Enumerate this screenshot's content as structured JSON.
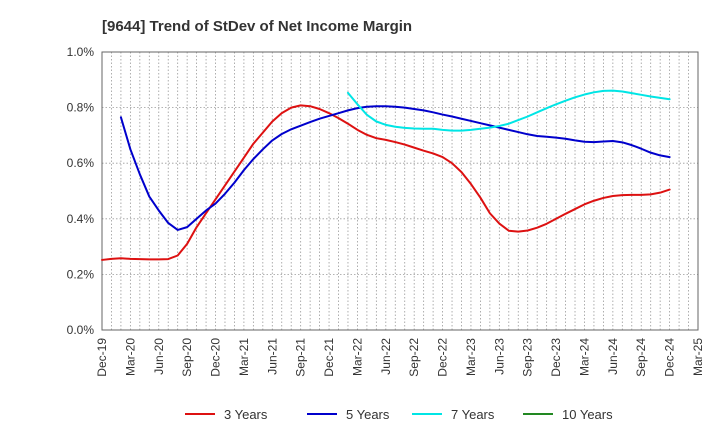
{
  "chart_data": {
    "type": "line",
    "title": "[9644]  Trend of StDev of Net Income Margin",
    "xlabel": "",
    "ylabel": "",
    "ylim": [
      0,
      1.0
    ],
    "y_ticks": [
      "0.0%",
      "0.2%",
      "0.4%",
      "0.6%",
      "0.8%",
      "1.0%"
    ],
    "y_tick_values": [
      0,
      0.2,
      0.4,
      0.6,
      0.8,
      1.0
    ],
    "x_ticks": [
      "Dec-19",
      "Mar-20",
      "Jun-20",
      "Sep-20",
      "Dec-20",
      "Mar-21",
      "Jun-21",
      "Sep-21",
      "Dec-21",
      "Mar-22",
      "Jun-22",
      "Sep-22",
      "Dec-22",
      "Mar-23",
      "Jun-23",
      "Sep-23",
      "Dec-23",
      "Mar-24",
      "Jun-24",
      "Sep-24",
      "Dec-24",
      "Mar-25"
    ],
    "grid": true,
    "legend_position": "bottom",
    "series": [
      {
        "name": "3 Years",
        "color": "#dd1111",
        "points": [
          [
            "Dec-19",
            0.252
          ],
          [
            "Jan-20",
            0.256
          ],
          [
            "Feb-20",
            0.258
          ],
          [
            "Mar-20",
            0.256
          ],
          [
            "Apr-20",
            0.255
          ],
          [
            "May-20",
            0.254
          ],
          [
            "Jun-20",
            0.254
          ],
          [
            "Jul-20",
            0.255
          ],
          [
            "Aug-20",
            0.268
          ],
          [
            "Sep-20",
            0.31
          ],
          [
            "Oct-20",
            0.37
          ],
          [
            "Nov-20",
            0.42
          ],
          [
            "Dec-20",
            0.47
          ],
          [
            "Jan-21",
            0.52
          ],
          [
            "Feb-21",
            0.57
          ],
          [
            "Mar-21",
            0.62
          ],
          [
            "Apr-21",
            0.67
          ],
          [
            "May-21",
            0.71
          ],
          [
            "Jun-21",
            0.75
          ],
          [
            "Jul-21",
            0.78
          ],
          [
            "Aug-21",
            0.8
          ],
          [
            "Sep-21",
            0.808
          ],
          [
            "Oct-21",
            0.805
          ],
          [
            "Nov-21",
            0.795
          ],
          [
            "Dec-21",
            0.78
          ],
          [
            "Jan-22",
            0.762
          ],
          [
            "Feb-22",
            0.742
          ],
          [
            "Mar-22",
            0.72
          ],
          [
            "Apr-22",
            0.702
          ],
          [
            "May-22",
            0.69
          ],
          [
            "Jun-22",
            0.684
          ],
          [
            "Jul-22",
            0.676
          ],
          [
            "Aug-22",
            0.667
          ],
          [
            "Sep-22",
            0.656
          ],
          [
            "Oct-22",
            0.645
          ],
          [
            "Nov-22",
            0.635
          ],
          [
            "Dec-22",
            0.622
          ],
          [
            "Jan-23",
            0.6
          ],
          [
            "Feb-23",
            0.568
          ],
          [
            "Mar-23",
            0.525
          ],
          [
            "Apr-23",
            0.476
          ],
          [
            "May-23",
            0.42
          ],
          [
            "Jun-23",
            0.383
          ],
          [
            "Jul-23",
            0.357
          ],
          [
            "Aug-23",
            0.354
          ],
          [
            "Sep-23",
            0.358
          ],
          [
            "Oct-23",
            0.368
          ],
          [
            "Nov-23",
            0.382
          ],
          [
            "Dec-23",
            0.4
          ],
          [
            "Jan-24",
            0.418
          ],
          [
            "Feb-24",
            0.435
          ],
          [
            "Mar-24",
            0.452
          ],
          [
            "Apr-24",
            0.465
          ],
          [
            "May-24",
            0.475
          ],
          [
            "Jun-24",
            0.482
          ],
          [
            "Jul-24",
            0.485
          ],
          [
            "Aug-24",
            0.486
          ],
          [
            "Sep-24",
            0.486
          ],
          [
            "Oct-24",
            0.488
          ],
          [
            "Nov-24",
            0.494
          ],
          [
            "Dec-24",
            0.505
          ]
        ]
      },
      {
        "name": "5 Years",
        "color": "#0000cc",
        "points": [
          [
            "Feb-20",
            0.765
          ],
          [
            "Mar-20",
            0.65
          ],
          [
            "Apr-20",
            0.56
          ],
          [
            "May-20",
            0.48
          ],
          [
            "Jun-20",
            0.43
          ],
          [
            "Jul-20",
            0.385
          ],
          [
            "Aug-20",
            0.36
          ],
          [
            "Sep-20",
            0.37
          ],
          [
            "Oct-20",
            0.4
          ],
          [
            "Nov-20",
            0.43
          ],
          [
            "Dec-20",
            0.455
          ],
          [
            "Jan-21",
            0.49
          ],
          [
            "Feb-21",
            0.53
          ],
          [
            "Mar-21",
            0.575
          ],
          [
            "Apr-21",
            0.615
          ],
          [
            "May-21",
            0.65
          ],
          [
            "Jun-21",
            0.682
          ],
          [
            "Jul-21",
            0.705
          ],
          [
            "Aug-21",
            0.722
          ],
          [
            "Sep-21",
            0.735
          ],
          [
            "Oct-21",
            0.748
          ],
          [
            "Nov-21",
            0.76
          ],
          [
            "Dec-21",
            0.77
          ],
          [
            "Jan-22",
            0.78
          ],
          [
            "Feb-22",
            0.79
          ],
          [
            "Mar-22",
            0.798
          ],
          [
            "Apr-22",
            0.803
          ],
          [
            "May-22",
            0.805
          ],
          [
            "Jun-22",
            0.805
          ],
          [
            "Jul-22",
            0.803
          ],
          [
            "Aug-22",
            0.8
          ],
          [
            "Sep-22",
            0.795
          ],
          [
            "Oct-22",
            0.79
          ],
          [
            "Nov-22",
            0.783
          ],
          [
            "Dec-22",
            0.775
          ],
          [
            "Jan-23",
            0.768
          ],
          [
            "Feb-23",
            0.76
          ],
          [
            "Mar-23",
            0.752
          ],
          [
            "Apr-23",
            0.744
          ],
          [
            "May-23",
            0.736
          ],
          [
            "Jun-23",
            0.728
          ],
          [
            "Jul-23",
            0.72
          ],
          [
            "Aug-23",
            0.712
          ],
          [
            "Sep-23",
            0.704
          ],
          [
            "Oct-23",
            0.698
          ],
          [
            "Nov-23",
            0.695
          ],
          [
            "Dec-23",
            0.692
          ],
          [
            "Jan-24",
            0.688
          ],
          [
            "Feb-24",
            0.682
          ],
          [
            "Mar-24",
            0.677
          ],
          [
            "Apr-24",
            0.676
          ],
          [
            "May-24",
            0.678
          ],
          [
            "Jun-24",
            0.68
          ],
          [
            "Jul-24",
            0.675
          ],
          [
            "Aug-24",
            0.665
          ],
          [
            "Sep-24",
            0.652
          ],
          [
            "Oct-24",
            0.638
          ],
          [
            "Nov-24",
            0.628
          ],
          [
            "Dec-24",
            0.622
          ]
        ]
      },
      {
        "name": "7 Years",
        "color": "#00e5e5",
        "points": [
          [
            "Feb-22",
            0.853
          ],
          [
            "Mar-22",
            0.812
          ],
          [
            "Apr-22",
            0.774
          ],
          [
            "May-22",
            0.75
          ],
          [
            "Jun-22",
            0.738
          ],
          [
            "Jul-22",
            0.731
          ],
          [
            "Aug-22",
            0.727
          ],
          [
            "Sep-22",
            0.725
          ],
          [
            "Oct-22",
            0.724
          ],
          [
            "Nov-22",
            0.724
          ],
          [
            "Dec-22",
            0.72
          ],
          [
            "Jan-23",
            0.717
          ],
          [
            "Feb-23",
            0.717
          ],
          [
            "Mar-23",
            0.72
          ],
          [
            "Apr-23",
            0.724
          ],
          [
            "May-23",
            0.728
          ],
          [
            "Jun-23",
            0.734
          ],
          [
            "Jul-23",
            0.742
          ],
          [
            "Aug-23",
            0.755
          ],
          [
            "Sep-23",
            0.768
          ],
          [
            "Oct-23",
            0.783
          ],
          [
            "Nov-23",
            0.798
          ],
          [
            "Dec-23",
            0.812
          ],
          [
            "Jan-24",
            0.825
          ],
          [
            "Feb-24",
            0.837
          ],
          [
            "Mar-24",
            0.847
          ],
          [
            "Apr-24",
            0.855
          ],
          [
            "May-24",
            0.86
          ],
          [
            "Jun-24",
            0.861
          ],
          [
            "Jul-24",
            0.858
          ],
          [
            "Aug-24",
            0.852
          ],
          [
            "Sep-24",
            0.846
          ],
          [
            "Oct-24",
            0.84
          ],
          [
            "Nov-24",
            0.835
          ],
          [
            "Dec-24",
            0.83
          ]
        ]
      },
      {
        "name": "10 Years",
        "color": "#228822",
        "points": []
      }
    ]
  }
}
